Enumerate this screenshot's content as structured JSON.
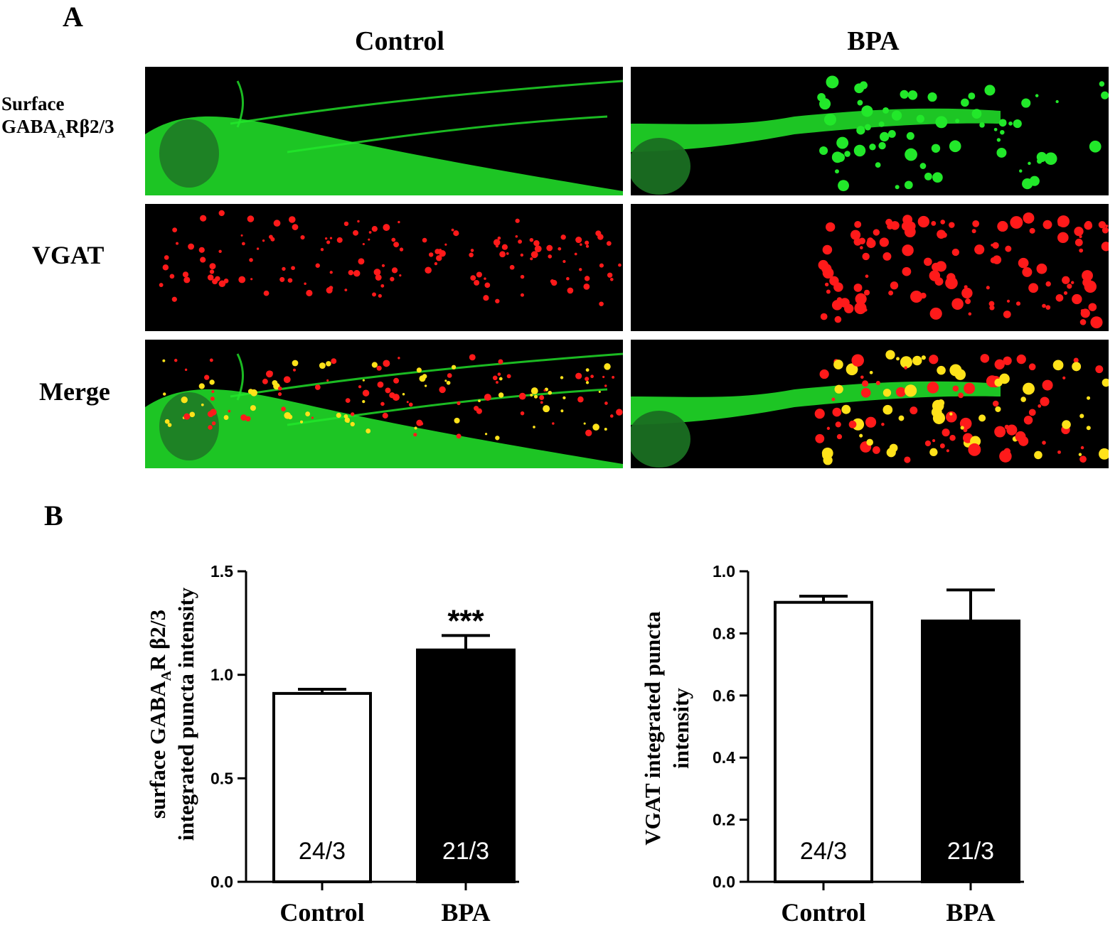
{
  "panel_a": {
    "letter": "A",
    "columns": [
      "Control",
      "BPA"
    ],
    "rows": [
      {
        "label_main": "Surface",
        "label_line2_pre": "GABA",
        "label_line2_sub": "A",
        "label_line2_post": "Rβ2/3",
        "channel": "green"
      },
      {
        "label_main": "VGAT",
        "channel": "red"
      },
      {
        "label_main": "Merge",
        "channel": "merge"
      }
    ],
    "colors": {
      "green": "#22e82a",
      "red": "#ff1a1a",
      "yellow": "#ffe21a",
      "background": "#000000"
    }
  },
  "panel_b": {
    "letter": "B"
  },
  "chart_data": [
    {
      "type": "bar",
      "categories": [
        "Control",
        "BPA"
      ],
      "values": [
        0.91,
        1.12
      ],
      "errors": [
        0.02,
        0.07
      ],
      "n_labels": [
        "24/3",
        "21/3"
      ],
      "bar_fills": [
        "#ffffff",
        "#000000"
      ],
      "significance": [
        "",
        "***"
      ],
      "ylabel_line1_pre": "surface GABA",
      "ylabel_line1_sub": "A",
      "ylabel_line1_post": "R β2/3",
      "ylabel_line2": "integrated puncta intensity",
      "ylim": [
        0,
        1.5
      ],
      "yticks": [
        "0.0",
        "0.5",
        "1.0",
        "1.5"
      ],
      "grid": false
    },
    {
      "type": "bar",
      "categories": [
        "Control",
        "BPA"
      ],
      "values": [
        0.9,
        0.84
      ],
      "errors": [
        0.02,
        0.1
      ],
      "n_labels": [
        "24/3",
        "21/3"
      ],
      "bar_fills": [
        "#ffffff",
        "#000000"
      ],
      "significance": [
        "",
        ""
      ],
      "ylabel_line1": "VGAT integrated puncta",
      "ylabel_line2": "intensity",
      "ylim": [
        0,
        1.0
      ],
      "yticks": [
        "0.0",
        "0.2",
        "0.4",
        "0.6",
        "0.8",
        "1.0"
      ],
      "grid": false
    }
  ]
}
